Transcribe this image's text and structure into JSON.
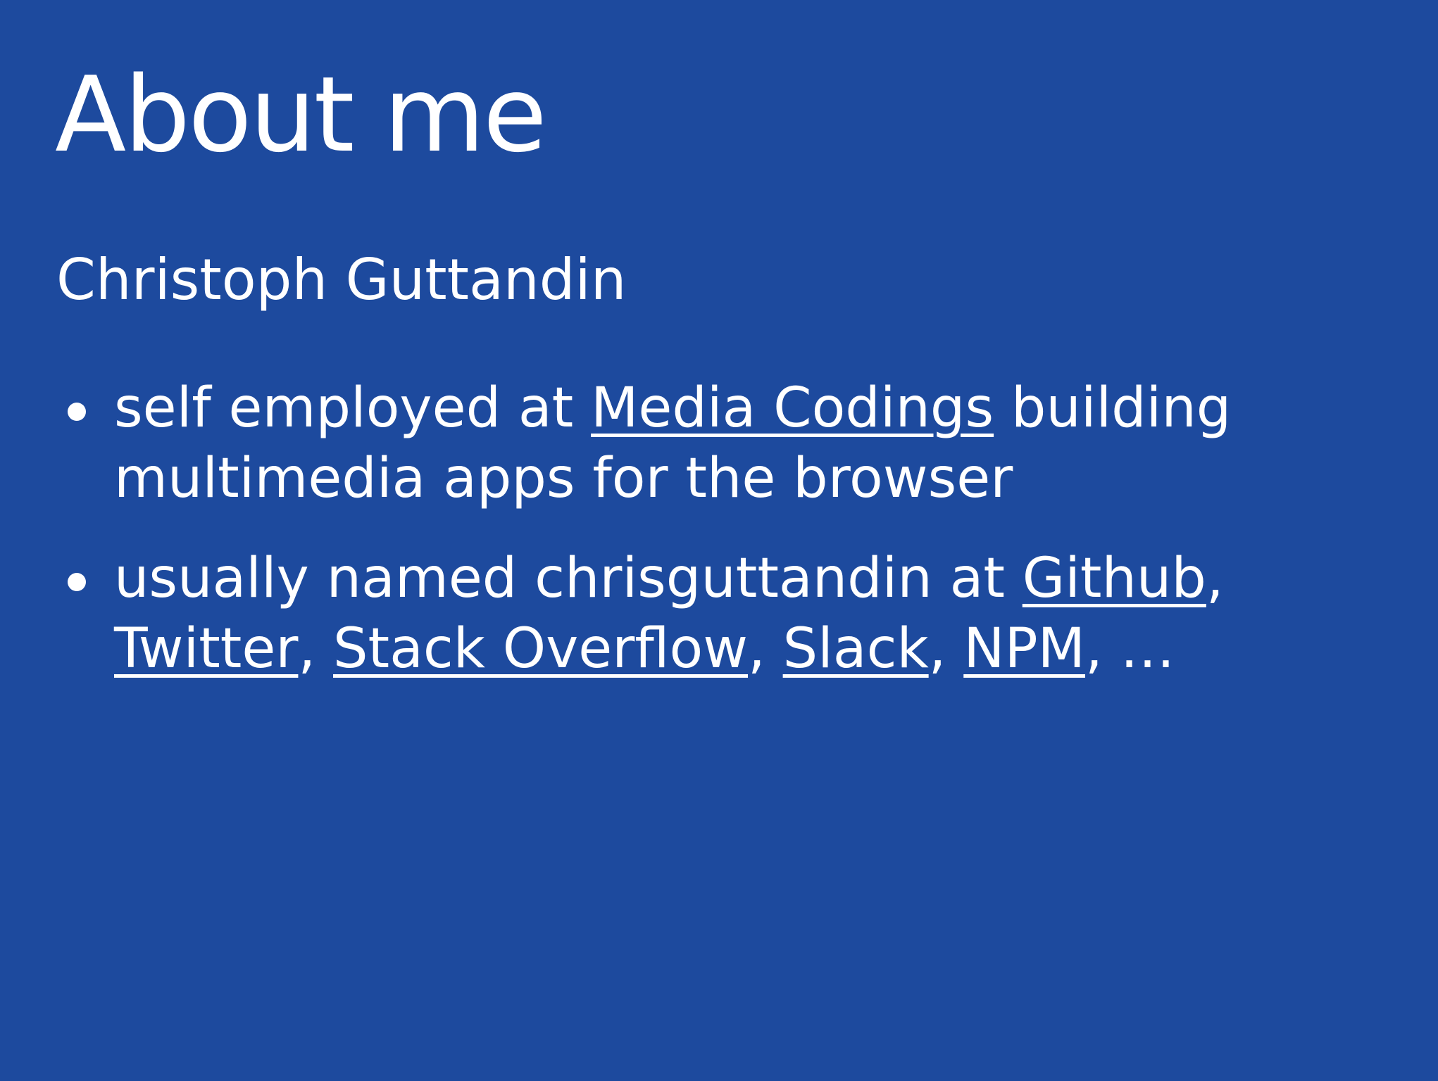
{
  "slide": {
    "title": "About me",
    "subtitle": "Christoph Guttandin",
    "bullet1": {
      "prefix": "self employed at ",
      "link": "Media Codings",
      "suffix": " building",
      "line2": "multimedia apps for the browser"
    },
    "bullet2": {
      "prefix": "usually named chrisguttandin at ",
      "links": [
        "Github",
        "Twitter",
        "Stack Overflow",
        "Slack",
        "NPM"
      ],
      "sep": ", ",
      "tail": ", …"
    }
  },
  "colors": {
    "background": "#1d4a9e",
    "text": "#ffffff"
  }
}
